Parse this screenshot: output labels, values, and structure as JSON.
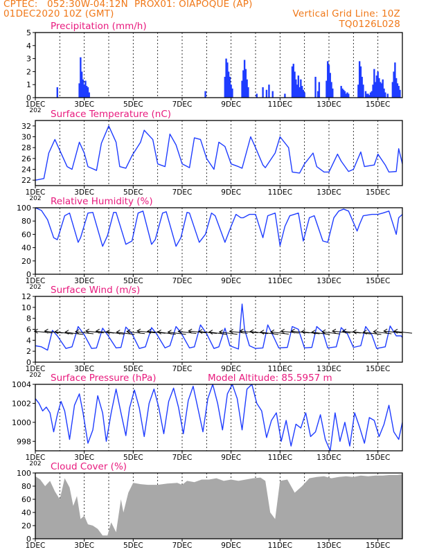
{
  "header": {
    "line1_left": "CPTEC:",
    "line1_coords": "052:30W-04:12N",
    "line1_station": "PROX01: OIAPOQUE (AP)",
    "line2_left": "01DEC2020 10Z (GMT)",
    "line2_right": "Vertical Grid Line: 10Z",
    "line3_right": "TQ0126L028",
    "cut_year_label": "202"
  },
  "colors": {
    "header": "#f07818",
    "panel_title": "#e8197d",
    "line": "#1e3cff",
    "bar": "#1e3cff",
    "cloud": "#a8a8a8",
    "arrow": "#000000"
  },
  "x_axis": {
    "day_start": 1,
    "day_end": 16,
    "tick_labels": [
      "1DEC",
      "3DEC",
      "5DEC",
      "7DEC",
      "9DEC",
      "11DEC",
      "13DEC",
      "15DEC"
    ],
    "tick_days": [
      1,
      3,
      5,
      7,
      9,
      11,
      13,
      15
    ]
  },
  "chart_data": [
    {
      "id": "precip",
      "type": "bar",
      "title": "Precipitation (mm/h)",
      "ylim": [
        0,
        5
      ],
      "yticks": [
        0,
        1,
        2,
        3,
        4,
        5
      ],
      "grid": "vertical dashed",
      "x": [
        1.9,
        2.8,
        2.85,
        2.9,
        2.95,
        3.0,
        3.05,
        3.1,
        3.15,
        3.2,
        7.95,
        8.75,
        8.8,
        8.85,
        8.9,
        8.95,
        9.0,
        9.05,
        9.45,
        9.5,
        9.55,
        9.6,
        9.65,
        9.7,
        10.05,
        10.3,
        10.45,
        10.55,
        10.7,
        11.2,
        11.5,
        11.55,
        11.6,
        11.65,
        11.7,
        11.75,
        11.8,
        11.85,
        11.9,
        11.95,
        12.0,
        12.45,
        12.55,
        12.6,
        12.9,
        12.95,
        13.0,
        13.05,
        13.1,
        13.15,
        13.5,
        13.55,
        13.6,
        13.65,
        13.7,
        13.75,
        13.8,
        14.2,
        14.25,
        14.3,
        14.35,
        14.4,
        14.5,
        14.55,
        14.6,
        14.65,
        14.7,
        14.75,
        14.8,
        14.85,
        14.9,
        14.95,
        15.0,
        15.05,
        15.1,
        15.15,
        15.2,
        15.25,
        15.3,
        15.4,
        15.6,
        15.65,
        15.7,
        15.75,
        15.8,
        15.85,
        15.9
      ],
      "values": [
        0.8,
        1.1,
        3.1,
        2.0,
        1.4,
        1.0,
        1.3,
        0.9,
        0.8,
        0.4,
        0.5,
        1.6,
        3.0,
        2.7,
        2.0,
        1.6,
        1.0,
        0.7,
        1.3,
        2.1,
        2.9,
        2.2,
        1.4,
        0.8,
        0.3,
        0.8,
        0.6,
        1.0,
        0.5,
        0.3,
        2.4,
        2.6,
        2.0,
        1.4,
        1.0,
        1.7,
        0.8,
        1.4,
        0.9,
        0.6,
        0.4,
        1.6,
        0.5,
        1.2,
        1.3,
        2.8,
        2.5,
        1.9,
        1.2,
        0.7,
        0.9,
        0.7,
        0.6,
        0.5,
        0.3,
        0.4,
        0.3,
        1.0,
        2.8,
        2.4,
        1.6,
        1.0,
        0.5,
        0.3,
        0.3,
        0.2,
        0.4,
        0.5,
        1.0,
        2.2,
        1.2,
        1.7,
        2.0,
        1.5,
        1.2,
        1.1,
        1.4,
        0.7,
        0.4,
        0.3,
        1.2,
        2.0,
        2.7,
        1.5,
        1.1,
        0.9,
        0.6
      ]
    },
    {
      "id": "temp",
      "type": "line",
      "title": "Surface Temperature (nC)",
      "ylim": [
        21,
        33
      ],
      "yticks": [
        22,
        24,
        26,
        28,
        30,
        32
      ],
      "grid": "vertical dashed",
      "x": [
        1.0,
        1.35,
        1.55,
        1.8,
        1.95,
        2.3,
        2.5,
        2.8,
        3.0,
        3.15,
        3.5,
        3.7,
        4.0,
        4.3,
        4.45,
        4.7,
        4.95,
        5.3,
        5.45,
        5.8,
        6.0,
        6.3,
        6.5,
        6.75,
        7.0,
        7.3,
        7.5,
        7.75,
        8.0,
        8.3,
        8.5,
        8.75,
        9.0,
        9.3,
        9.45,
        9.8,
        10.0,
        10.3,
        10.4,
        10.8,
        11.0,
        11.35,
        11.5,
        11.8,
        12.0,
        12.35,
        12.5,
        12.8,
        13.0,
        13.35,
        13.5,
        13.8,
        14.0,
        14.3,
        14.45,
        14.85,
        15.0,
        15.3,
        15.45,
        15.75,
        15.85,
        16.0
      ],
      "values": [
        22.0,
        22.3,
        27.0,
        29.5,
        28.0,
        24.5,
        24.0,
        29.0,
        27.0,
        24.5,
        23.8,
        28.8,
        32.0,
        29.0,
        24.5,
        24.2,
        26.5,
        29.0,
        31.2,
        29.5,
        25.0,
        24.5,
        30.5,
        28.5,
        25.0,
        24.3,
        29.8,
        29.5,
        26.0,
        24.0,
        29.0,
        28.2,
        25.0,
        24.5,
        24.2,
        30.0,
        28.0,
        24.8,
        24.3,
        27.0,
        30.0,
        28.0,
        23.5,
        23.3,
        25.0,
        27.0,
        24.5,
        23.5,
        23.5,
        26.8,
        25.5,
        23.6,
        24.0,
        27.2,
        24.5,
        24.8,
        26.8,
        24.8,
        23.5,
        23.6,
        27.8,
        25.0
      ]
    },
    {
      "id": "rh",
      "type": "line",
      "title": "Relative Humidity (%)",
      "ylim": [
        0,
        100
      ],
      "yticks": [
        0,
        20,
        40,
        60,
        80,
        100
      ],
      "grid": "vertical dashed",
      "x": [
        1.0,
        1.25,
        1.5,
        1.75,
        1.9,
        2.2,
        2.4,
        2.75,
        2.85,
        3.15,
        3.35,
        3.75,
        3.95,
        4.2,
        4.3,
        4.7,
        4.95,
        5.2,
        5.4,
        5.75,
        5.9,
        6.2,
        6.35,
        6.75,
        6.95,
        7.2,
        7.3,
        7.7,
        7.95,
        8.2,
        8.35,
        8.75,
        9.0,
        9.2,
        9.4,
        9.5,
        9.75,
        10.0,
        10.3,
        10.5,
        10.8,
        11.0,
        11.2,
        11.4,
        11.75,
        11.95,
        12.2,
        12.4,
        12.75,
        12.95,
        13.2,
        13.4,
        13.6,
        13.8,
        14.15,
        14.25,
        14.4,
        14.75,
        15.0,
        15.2,
        15.45,
        15.75,
        15.85,
        16.0
      ],
      "values": [
        100,
        96,
        82,
        55,
        52,
        88,
        92,
        48,
        55,
        92,
        93,
        42,
        58,
        93,
        93,
        45,
        50,
        92,
        95,
        45,
        52,
        92,
        94,
        42,
        55,
        93,
        92,
        48,
        60,
        92,
        88,
        48,
        72,
        90,
        85,
        85,
        90,
        90,
        55,
        88,
        92,
        43,
        72,
        88,
        92,
        50,
        85,
        88,
        50,
        48,
        85,
        95,
        98,
        95,
        65,
        75,
        88,
        90,
        90,
        92,
        95,
        60,
        85,
        90
      ]
    },
    {
      "id": "wind",
      "type": "line",
      "title": "Surface Wind (m/s)",
      "ylim": [
        0,
        12
      ],
      "yticks": [
        0,
        2,
        4,
        6,
        8,
        10,
        12
      ],
      "grid": "vertical dashed",
      "x": [
        1.0,
        1.25,
        1.5,
        1.7,
        1.9,
        2.25,
        2.5,
        2.75,
        3.0,
        3.3,
        3.5,
        3.75,
        3.95,
        4.3,
        4.5,
        4.7,
        4.95,
        5.25,
        5.5,
        5.75,
        5.95,
        6.3,
        6.5,
        6.75,
        6.95,
        7.3,
        7.5,
        7.75,
        8.0,
        8.3,
        8.5,
        8.75,
        8.95,
        9.3,
        9.45,
        9.55,
        9.75,
        10.0,
        10.3,
        10.5,
        10.75,
        10.95,
        11.3,
        11.5,
        11.75,
        12.0,
        12.3,
        12.5,
        12.75,
        12.95,
        13.3,
        13.5,
        13.75,
        14.0,
        14.3,
        14.5,
        14.75,
        14.95,
        15.3,
        15.5,
        15.75,
        15.95,
        16.0
      ],
      "values": [
        3.0,
        2.8,
        2.2,
        5.8,
        4.8,
        2.5,
        2.8,
        6.5,
        5.0,
        2.5,
        2.6,
        6.2,
        5.0,
        2.6,
        2.7,
        6.4,
        5.2,
        2.5,
        2.8,
        6.3,
        5.2,
        2.6,
        3.0,
        6.5,
        5.4,
        2.6,
        2.8,
        6.8,
        5.2,
        2.5,
        2.8,
        6.2,
        3.0,
        2.4,
        10.6,
        6.0,
        3.0,
        2.5,
        2.6,
        6.8,
        4.5,
        2.6,
        2.7,
        6.5,
        6.0,
        2.6,
        2.7,
        6.5,
        5.5,
        2.6,
        2.8,
        6.3,
        5.2,
        2.7,
        3.0,
        6.5,
        5.0,
        2.5,
        2.8,
        6.6,
        4.8,
        4.8,
        4.5
      ],
      "arrows_direction": "westward wind vectors (from east)"
    },
    {
      "id": "pressure",
      "type": "line",
      "title": "Surface Pressure (hPa)",
      "subtitle": "Model Altitude: 85.5957 m",
      "ylim": [
        997,
        1004
      ],
      "yticks": [
        998,
        1000,
        1002,
        1004
      ],
      "grid": "vertical dashed",
      "x": [
        1.0,
        1.15,
        1.3,
        1.45,
        1.6,
        1.75,
        1.9,
        2.05,
        2.2,
        2.4,
        2.6,
        2.8,
        2.95,
        3.15,
        3.35,
        3.55,
        3.75,
        3.9,
        4.1,
        4.3,
        4.5,
        4.7,
        4.85,
        5.05,
        5.25,
        5.45,
        5.65,
        5.85,
        6.05,
        6.25,
        6.45,
        6.65,
        6.85,
        7.05,
        7.25,
        7.45,
        7.65,
        7.85,
        8.05,
        8.25,
        8.45,
        8.65,
        8.85,
        9.05,
        9.25,
        9.45,
        9.65,
        9.85,
        10.05,
        10.25,
        10.45,
        10.65,
        10.85,
        11.05,
        11.25,
        11.45,
        11.65,
        11.85,
        12.05,
        12.25,
        12.45,
        12.65,
        12.85,
        13.05,
        13.25,
        13.45,
        13.65,
        13.85,
        14.05,
        14.25,
        14.45,
        14.65,
        14.85,
        15.05,
        15.25,
        15.45,
        15.65,
        15.85,
        16.0
      ],
      "values": [
        1002.5,
        1002.0,
        1001.2,
        1001.6,
        1001.0,
        999.0,
        1000.8,
        1002.2,
        1001.2,
        998.2,
        1001.8,
        1003.0,
        1001.0,
        997.8,
        999.2,
        1002.8,
        1001.0,
        998.0,
        1001.0,
        1003.5,
        1001.0,
        998.6,
        1001.5,
        1003.4,
        1001.5,
        998.5,
        1002.0,
        1003.5,
        1001.5,
        998.8,
        1002.2,
        1003.6,
        1001.6,
        998.8,
        1002.3,
        1003.8,
        1001.4,
        999.0,
        1002.5,
        1004.0,
        1002.0,
        999.2,
        1003.0,
        1004.0,
        1002.5,
        999.2,
        1003.5,
        1004.0,
        1002.0,
        1001.2,
        998.4,
        1000.2,
        1001.0,
        998.0,
        1000.2,
        997.5,
        999.8,
        999.4,
        1001.0,
        998.5,
        999.0,
        1000.8,
        998.2,
        997.0,
        1001.0,
        998.0,
        1000.0,
        997.5,
        1001.0,
        999.5,
        997.8,
        1000.5,
        1000.2,
        998.5,
        999.8,
        1001.8,
        999.0,
        998.2,
        1000.0
      ]
    },
    {
      "id": "cloud",
      "type": "area",
      "title": "Cloud Cover (%)",
      "ylim": [
        0,
        100
      ],
      "yticks": [
        0,
        20,
        40,
        60,
        80,
        100
      ],
      "grid": "vertical dashed",
      "x": [
        1.0,
        1.2,
        1.4,
        1.6,
        1.8,
        2.0,
        2.2,
        2.4,
        2.55,
        2.7,
        2.85,
        3.0,
        3.15,
        3.35,
        3.55,
        3.75,
        3.95,
        4.1,
        4.3,
        4.5,
        4.6,
        4.8,
        5.0,
        5.3,
        5.6,
        6.0,
        6.4,
        6.8,
        7.0,
        7.2,
        7.5,
        7.8,
        8.1,
        8.4,
        8.7,
        9.0,
        9.3,
        9.6,
        9.9,
        10.2,
        10.4,
        10.6,
        10.8,
        11.0,
        11.3,
        11.6,
        11.9,
        12.2,
        12.5,
        12.8,
        13.1,
        13.4,
        13.7,
        14.0,
        14.3,
        14.6,
        14.9,
        15.2,
        15.5,
        15.8,
        16.0
      ],
      "values": [
        95,
        90,
        80,
        88,
        72,
        60,
        92,
        78,
        50,
        65,
        30,
        35,
        22,
        20,
        15,
        5,
        5,
        25,
        10,
        60,
        40,
        70,
        85,
        83,
        82,
        82,
        84,
        85,
        82,
        88,
        86,
        90,
        90,
        92,
        88,
        90,
        88,
        90,
        92,
        93,
        88,
        40,
        30,
        88,
        90,
        70,
        80,
        92,
        94,
        95,
        92,
        94,
        95,
        94,
        96,
        95,
        96,
        96,
        97,
        97,
        98
      ]
    }
  ]
}
